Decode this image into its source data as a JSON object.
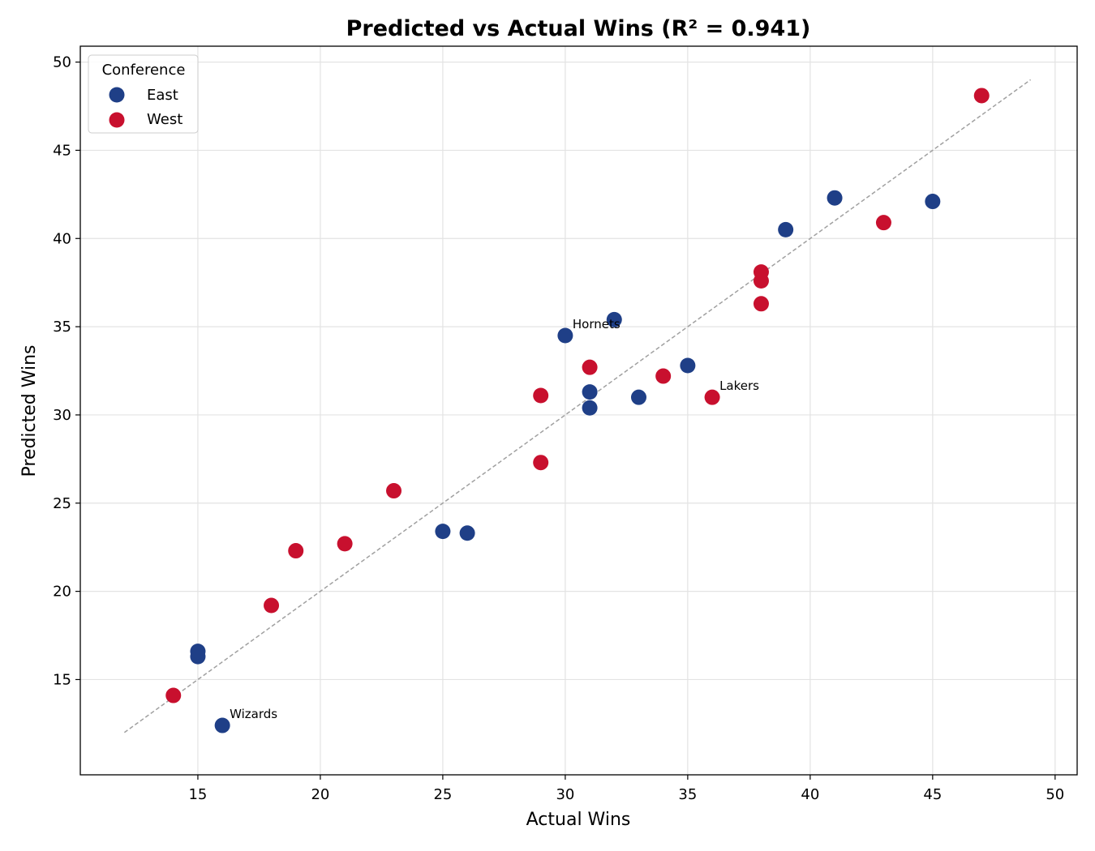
{
  "chart_data": {
    "type": "scatter",
    "title": "Predicted vs Actual Wins  (R² = 0.941)",
    "xlabel": "Actual Wins",
    "ylabel": "Predicted Wins",
    "xlim": [
      10.2,
      50.9
    ],
    "ylim": [
      9.6,
      50.9
    ],
    "xticks": [
      15,
      20,
      25,
      30,
      35,
      40,
      45,
      50
    ],
    "yticks": [
      15,
      20,
      25,
      30,
      35,
      40,
      45,
      50
    ],
    "grid": true,
    "legend": {
      "title": "Conference",
      "placement": "top-left"
    },
    "reference_line": {
      "style": "dashed",
      "color": "#a0a0a0",
      "from": [
        12,
        12
      ],
      "to": [
        49,
        49
      ]
    },
    "series": [
      {
        "name": "East",
        "color": "#1f3f87",
        "points": [
          {
            "x": 16,
            "y": 12.4
          },
          {
            "x": 15,
            "y": 16.3
          },
          {
            "x": 15,
            "y": 16.6
          },
          {
            "x": 25,
            "y": 23.4
          },
          {
            "x": 26,
            "y": 23.3
          },
          {
            "x": 30,
            "y": 34.5
          },
          {
            "x": 31,
            "y": 31.3
          },
          {
            "x": 31,
            "y": 30.4
          },
          {
            "x": 32,
            "y": 35.4
          },
          {
            "x": 33,
            "y": 31.0
          },
          {
            "x": 35,
            "y": 32.8
          },
          {
            "x": 39,
            "y": 40.5
          },
          {
            "x": 41,
            "y": 42.3
          },
          {
            "x": 45,
            "y": 42.1
          }
        ]
      },
      {
        "name": "West",
        "color": "#c8102e",
        "points": [
          {
            "x": 14,
            "y": 14.1
          },
          {
            "x": 18,
            "y": 19.2
          },
          {
            "x": 19,
            "y": 22.3
          },
          {
            "x": 21,
            "y": 22.7
          },
          {
            "x": 23,
            "y": 25.7
          },
          {
            "x": 29,
            "y": 31.1
          },
          {
            "x": 29,
            "y": 27.3
          },
          {
            "x": 31,
            "y": 32.7
          },
          {
            "x": 34,
            "y": 32.2
          },
          {
            "x": 36,
            "y": 31.0
          },
          {
            "x": 38,
            "y": 38.1
          },
          {
            "x": 38,
            "y": 37.6
          },
          {
            "x": 38,
            "y": 36.3
          },
          {
            "x": 43,
            "y": 40.9
          },
          {
            "x": 47,
            "y": 48.1
          }
        ]
      }
    ],
    "annotations": [
      {
        "text": "Hornets",
        "x": 30,
        "y": 34.5
      },
      {
        "text": "Lakers",
        "x": 36,
        "y": 31.0
      },
      {
        "text": "Wizards",
        "x": 16,
        "y": 12.4
      }
    ]
  }
}
